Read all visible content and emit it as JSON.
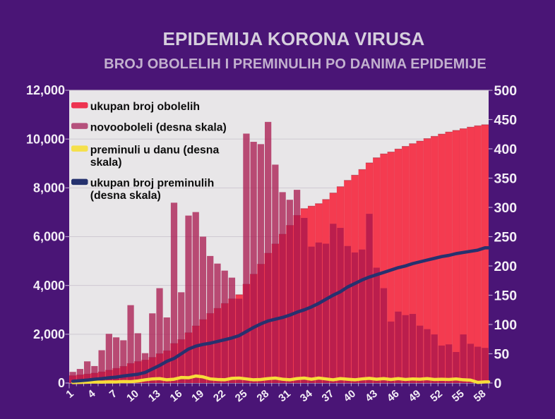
{
  "title": "EPIDEMIJA KORONA VIRUSA",
  "subtitle": "BROJ OBOLELIH I PREMINULIH PO DANIMA EPIDEMIJE",
  "colors": {
    "page_bg": "#4a1576",
    "plot_bg": "#e8e6e8",
    "grid": "#cfc9d2",
    "title_text": "#e9e2ee",
    "subtitle_text": "#c9b6d4",
    "axis_text": "#f3eef6",
    "tick": "rgba(223,213,233,0.75)",
    "red_bars": "#f43b50",
    "maroon_bars_rgba": "rgba(168,22,76,0.75)",
    "yellow_line": "#f7dc3a",
    "navy_line": "#27316e",
    "legend_text": "#0d0d0d",
    "legend_red": "#ee3350",
    "legend_maroon": "#b5517c",
    "legend_yellow": "#f5e04b",
    "legend_navy": "#25316e"
  },
  "legend": {
    "items": [
      {
        "key": "red",
        "swatch": "#ee3350",
        "lines": [
          "ukupan broj obolelih"
        ]
      },
      {
        "key": "maroon",
        "swatch": "#b5517c",
        "lines": [
          "novooboleli (desna skala)"
        ]
      },
      {
        "key": "yellow",
        "swatch": "#f5e04b",
        "lines": [
          "preminuli u danu (desna",
          "skala)"
        ]
      },
      {
        "key": "navy",
        "swatch": "#25316e",
        "lines": [
          "ukupan broj preminulih",
          "(desna skala)"
        ]
      }
    ]
  },
  "chart_data": {
    "type": "bar",
    "x_label_days": [
      1,
      4,
      7,
      10,
      13,
      16,
      19,
      22,
      25,
      28,
      31,
      34,
      37,
      40,
      43,
      46,
      49,
      52,
      55,
      58
    ],
    "days": 58,
    "left_axis": {
      "min": 0,
      "max": 12000,
      "step": 2000
    },
    "right_axis": {
      "min": 0,
      "max": 500,
      "step": 50
    },
    "series": [
      {
        "name": "ukupan broj obolelih",
        "type": "bar",
        "axis": "left",
        "values": [
          300,
          330,
          365,
          405,
          455,
          525,
          600,
          680,
          800,
          880,
          940,
          1050,
          1200,
          1320,
          1620,
          1780,
          2060,
          2340,
          2600,
          2850,
          3060,
          3260,
          3450,
          3620,
          4050,
          4460,
          4870,
          5320,
          5700,
          6100,
          6460,
          6870,
          7150,
          7252,
          7353,
          7524,
          7790,
          8048,
          8307,
          8520,
          8752,
          9024,
          9234,
          9392,
          9470,
          9591,
          9700,
          9812,
          9918,
          10020,
          10112,
          10205,
          10290,
          10355,
          10425,
          10490,
          10545,
          10588
        ]
      },
      {
        "name": "novooboleli (desna skala)",
        "type": "bar",
        "axis": "right",
        "values": [
          19,
          24,
          37,
          29,
          56,
          84,
          78,
          73,
          133,
          85,
          51,
          119,
          162,
          112,
          308,
          155,
          286,
          292,
          250,
          217,
          204,
          192,
          180,
          144,
          426,
          412,
          408,
          446,
          373,
          326,
          313,
          330,
          282,
          233,
          240,
          238,
          272,
          265,
          234,
          223,
          228,
          289,
          197,
          162,
          105,
          122,
          116,
          118,
          98,
          92,
          83,
          64,
          66,
          53,
          83,
          67,
          62,
          60
        ]
      },
      {
        "name": "preminuli u danu (desna skala)",
        "type": "line",
        "axis": "right",
        "values": [
          0.8,
          1,
          1.3,
          1.8,
          1.5,
          2,
          1.8,
          2.5,
          2.2,
          3.5,
          5.5,
          7,
          7.5,
          5.5,
          6.5,
          9.5,
          9,
          12,
          10.5,
          7,
          6,
          5.5,
          8,
          8.5,
          7,
          5.5,
          6,
          7.5,
          8.5,
          6.5,
          5.5,
          7.5,
          8.5,
          6.5,
          8.5,
          7,
          5.5,
          7.5,
          6.5,
          5.5,
          7,
          8,
          6.5,
          7.5,
          6,
          7.5,
          6,
          7,
          6.5,
          7.5,
          6,
          6.5,
          6,
          7,
          5.5,
          5,
          1,
          2
        ]
      },
      {
        "name": "ukupan broj preminulih (desna skala)",
        "type": "line",
        "axis": "right",
        "values": [
          3,
          4,
          5,
          6.5,
          7.5,
          9,
          10,
          12,
          13.5,
          15,
          18,
          24,
          30,
          37,
          42,
          50,
          58,
          63,
          66,
          68,
          71,
          74,
          77,
          81,
          88,
          95,
          101,
          106,
          109,
          112,
          116,
          121,
          125,
          130,
          136,
          143,
          150,
          156,
          164,
          170,
          176,
          181,
          185,
          189,
          193,
          197,
          200,
          204,
          207,
          210,
          213,
          216,
          218,
          221,
          223,
          225,
          227,
          231
        ]
      }
    ]
  }
}
